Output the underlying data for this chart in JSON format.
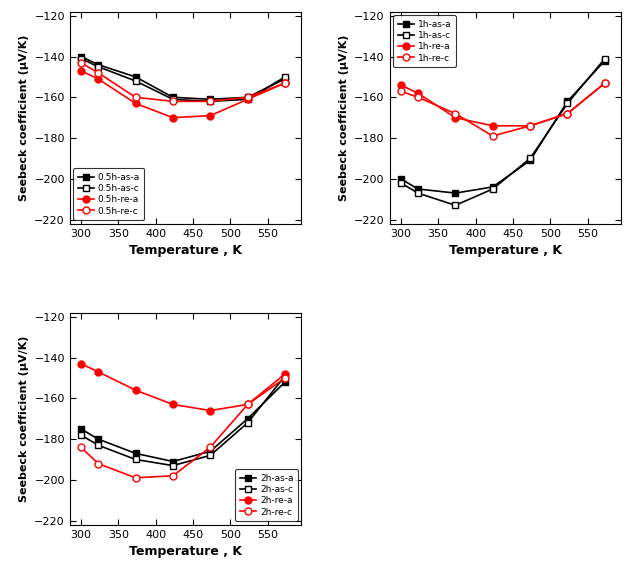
{
  "temp": [
    300,
    323,
    373,
    423,
    473,
    523,
    573
  ],
  "chart1": {
    "series": {
      "0.5h-as-a": {
        "color": "black",
        "marker": "s",
        "fillstyle": "full",
        "values": [
          -140,
          -144,
          -150,
          -160,
          -161,
          -160,
          -151
        ]
      },
      "0.5h-as-c": {
        "color": "black",
        "marker": "s",
        "fillstyle": "none",
        "values": [
          -141,
          -145,
          -152,
          -161,
          -162,
          -161,
          -150
        ]
      },
      "0.5h-re-a": {
        "color": "red",
        "marker": "o",
        "fillstyle": "full",
        "values": [
          -147,
          -151,
          -163,
          -170,
          -169,
          -161,
          -153
        ]
      },
      "0.5h-re-c": {
        "color": "red",
        "marker": "o",
        "fillstyle": "none",
        "values": [
          -143,
          -148,
          -160,
          -162,
          -162,
          -160,
          -153
        ]
      }
    }
  },
  "chart2": {
    "series": {
      "1h-as-a": {
        "color": "black",
        "marker": "s",
        "fillstyle": "full",
        "values": [
          -200,
          -205,
          -207,
          -204,
          -191,
          -162,
          -142
        ]
      },
      "1h-as-c": {
        "color": "black",
        "marker": "s",
        "fillstyle": "none",
        "values": [
          -202,
          -207,
          -213,
          -205,
          -190,
          -163,
          -141
        ]
      },
      "1h-re-a": {
        "color": "red",
        "marker": "o",
        "fillstyle": "full",
        "values": [
          -154,
          -158,
          -170,
          -174,
          -174,
          -168,
          -153
        ]
      },
      "1h-re-c": {
        "color": "red",
        "marker": "o",
        "fillstyle": "none",
        "values": [
          -157,
          -160,
          -168,
          -179,
          -174,
          -168,
          -153
        ]
      }
    }
  },
  "chart3": {
    "series": {
      "2h-as-a": {
        "color": "black",
        "marker": "s",
        "fillstyle": "full",
        "values": [
          -175,
          -180,
          -187,
          -191,
          -186,
          -170,
          -152
        ]
      },
      "2h-as-c": {
        "color": "black",
        "marker": "s",
        "fillstyle": "none",
        "values": [
          -178,
          -183,
          -190,
          -193,
          -188,
          -172,
          -149
        ]
      },
      "2h-re-a": {
        "color": "red",
        "marker": "o",
        "fillstyle": "full",
        "values": [
          -143,
          -147,
          -156,
          -163,
          -166,
          -163,
          -148
        ]
      },
      "2h-re-c": {
        "color": "red",
        "marker": "o",
        "fillstyle": "none",
        "values": [
          -184,
          -192,
          -199,
          -198,
          -184,
          -163,
          -150
        ]
      }
    }
  },
  "ylabel": "Seebeck coefficient (μV/K)",
  "xlabel": "Temperature , K",
  "ylim": [
    -222,
    -118
  ],
  "xlim": [
    285,
    595
  ],
  "yticks": [
    -220,
    -200,
    -180,
    -160,
    -140,
    -120
  ],
  "xticks": [
    300,
    350,
    400,
    450,
    500,
    550
  ],
  "legend_locs": [
    "lower left",
    "upper left",
    "lower right"
  ],
  "markersize": 5,
  "linewidth": 1.2,
  "tick_labelsize": 8,
  "xlabel_fontsize": 9,
  "ylabel_fontsize": 8,
  "legend_fontsize": 6.5
}
